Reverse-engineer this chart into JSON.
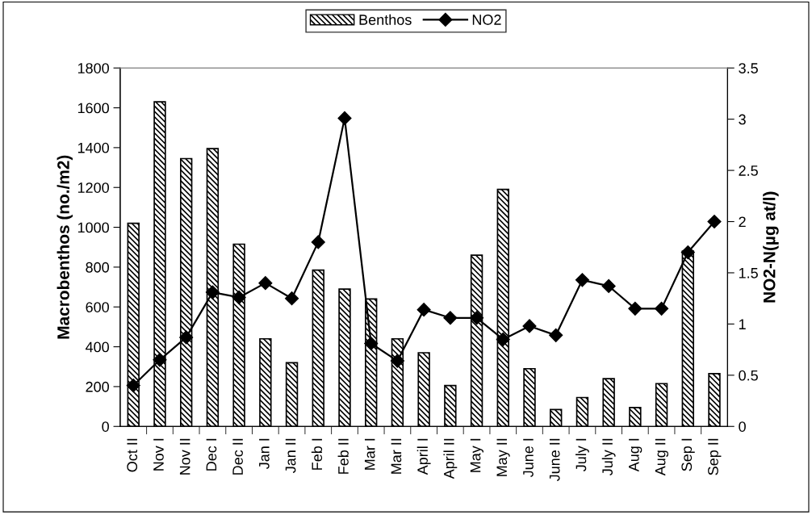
{
  "chart_data": {
    "type": "bar",
    "categories": [
      "Oct II",
      "Nov I",
      "Nov II",
      "Dec I",
      "Dec II",
      "Jan I",
      "Jan II",
      "Feb I",
      "Feb II",
      "Mar I",
      "Mar II",
      "April I",
      "April II",
      "May I",
      "May II",
      "June I",
      "June II",
      "July I",
      "July II",
      "Aug I",
      "Aug II",
      "Sep I",
      "Sep II"
    ],
    "series": [
      {
        "name": "Benthos",
        "color": "#000000",
        "values": [
          1020,
          1630,
          1345,
          1395,
          915,
          440,
          320,
          785,
          690,
          640,
          440,
          370,
          205,
          860,
          1190,
          290,
          85,
          145,
          240,
          95,
          215,
          880,
          265
        ]
      },
      {
        "name": "NO2",
        "type": "line",
        "axis": "y2",
        "color": "#000000",
        "values": [
          0.4,
          0.65,
          0.87,
          1.31,
          1.26,
          1.4,
          1.25,
          1.8,
          3.01,
          0.81,
          0.64,
          1.14,
          1.06,
          1.06,
          0.85,
          0.98,
          0.89,
          1.43,
          1.37,
          1.15,
          1.15,
          1.7,
          2.0
        ]
      }
    ],
    "ylabel": "Macrobenthos (no./m2)",
    "y2label": "NO2-N(µg at/l)",
    "ylim": [
      0,
      1800
    ],
    "yticks": [
      0,
      200,
      400,
      600,
      800,
      1000,
      1200,
      1400,
      1600,
      1800
    ],
    "y2lim": [
      0,
      3.5
    ],
    "y2ticks": [
      0,
      0.5,
      1,
      1.5,
      2,
      2.5,
      3,
      3.5
    ],
    "marker": "diamond",
    "line_style": "solid",
    "grid": false,
    "legend": "top"
  }
}
